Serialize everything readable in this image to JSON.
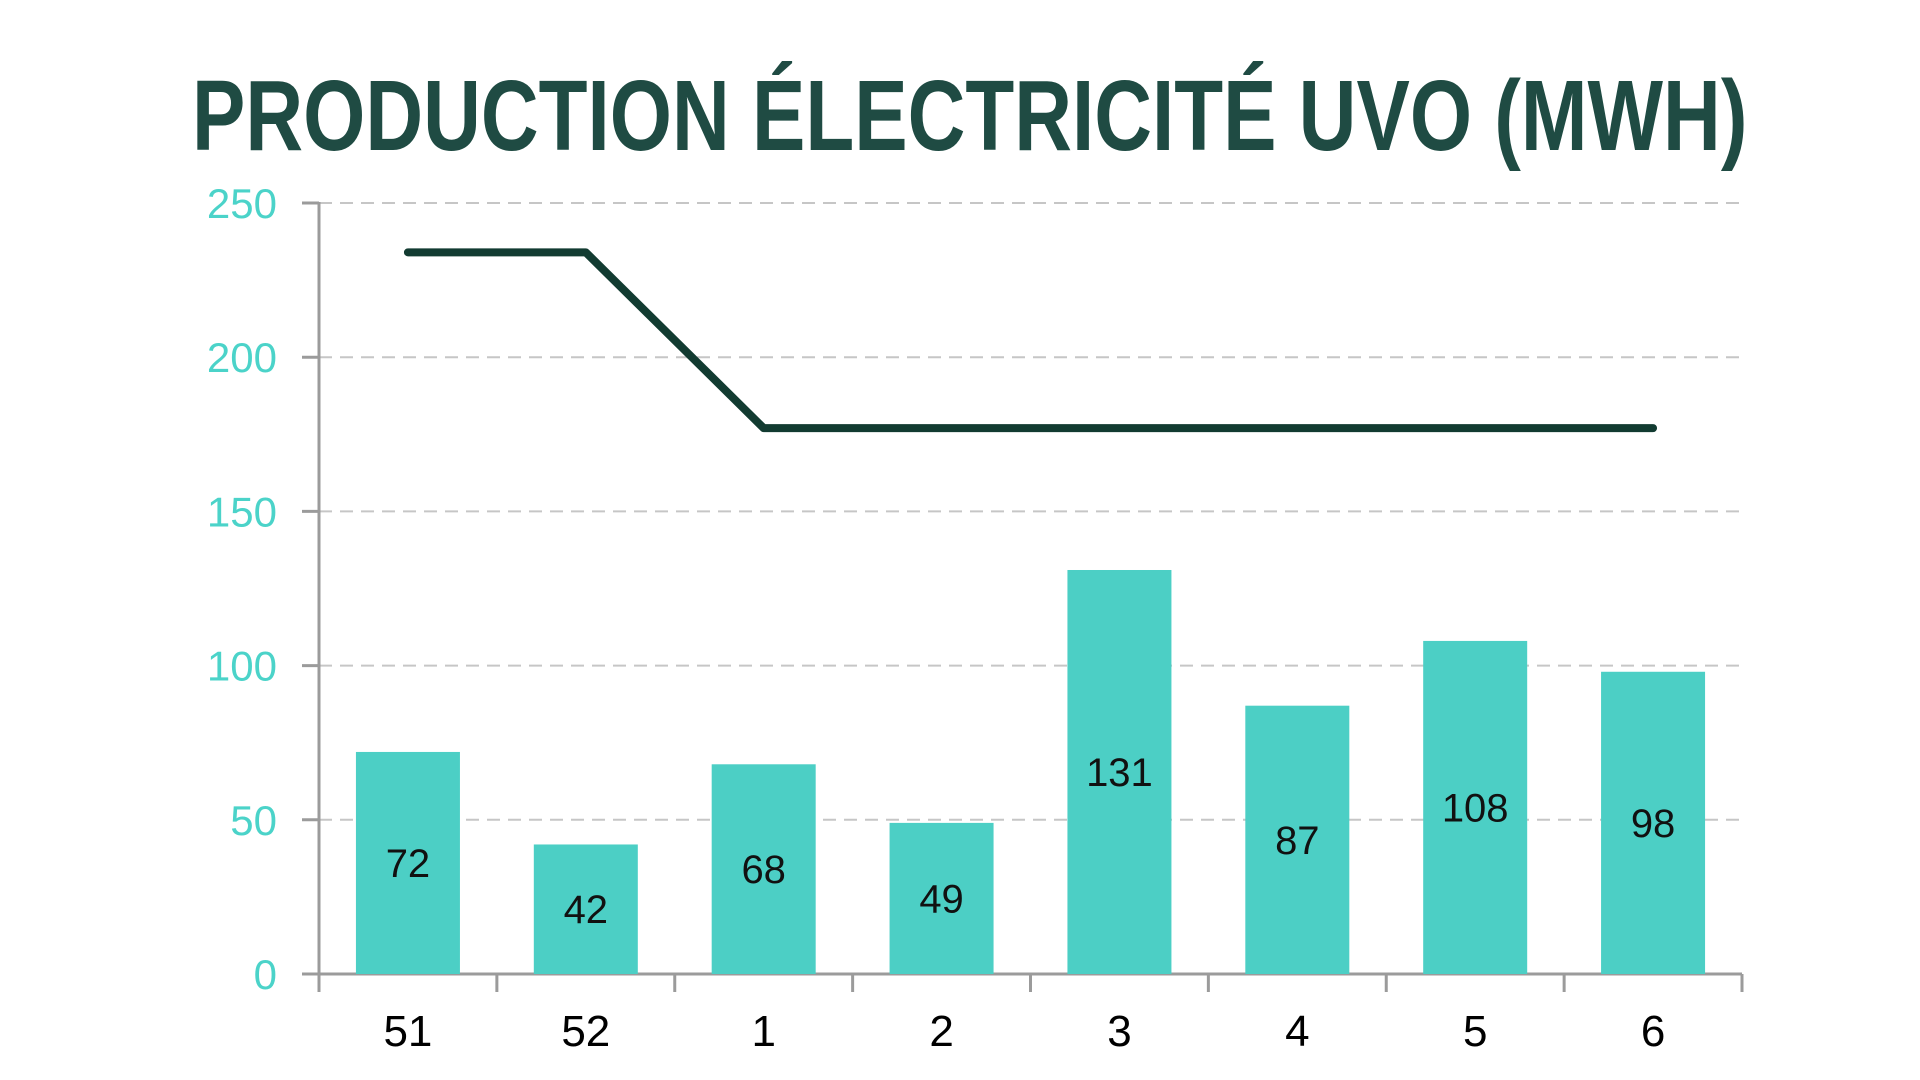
{
  "page": {
    "background": "#FFFFFF"
  },
  "chart_data": {
    "type": "bar",
    "title": "PRODUCTION ÉLECTRICITÉ UVO (MWH)",
    "categories": [
      "51",
      "52",
      "1",
      "2",
      "3",
      "4",
      "5",
      "6"
    ],
    "series": [
      {
        "name": "production-bars",
        "type": "bar",
        "values": [
          72,
          42,
          68,
          49,
          131,
          87,
          108,
          98
        ],
        "color": "#4CCFC5",
        "data_labels": true
      },
      {
        "name": "reference-line",
        "type": "line",
        "values": [
          234,
          234,
          177,
          177,
          177,
          177,
          177,
          177
        ],
        "color": "#123B31"
      }
    ],
    "xlabel": "",
    "ylabel": "",
    "ylim": [
      0,
      250
    ],
    "yticks": [
      0,
      50,
      100,
      150,
      200,
      250
    ],
    "grid": "horizontal-dashed",
    "legend": "none",
    "colors": {
      "title": "#1F4B43",
      "ytick_labels": "#4BD3C9",
      "xtick_labels": "#000000",
      "bar_labels": "#111111",
      "gridline": "#C6C6C6",
      "axis": "#9B9B9B",
      "background": "#FFFFFF"
    }
  }
}
